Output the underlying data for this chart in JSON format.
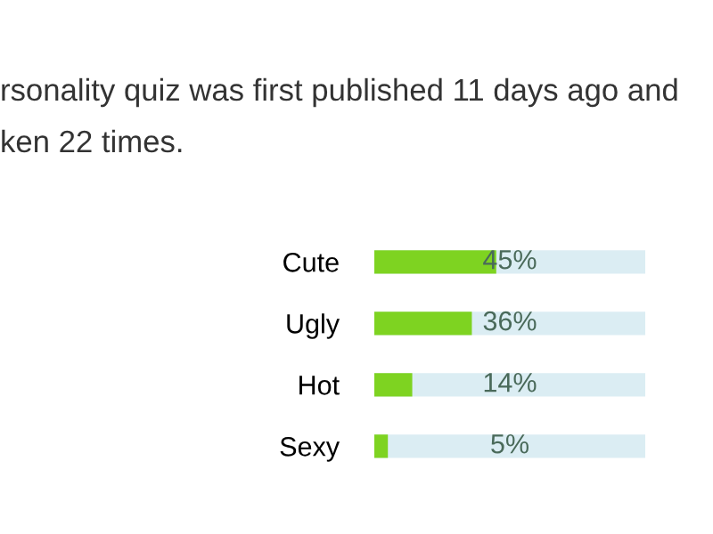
{
  "chart_data": {
    "type": "bar",
    "orientation": "horizontal",
    "annotations": [
      "rsonality quiz was first published 11 days ago and",
      "ken 22 times."
    ],
    "categories": [
      "Cute",
      "Ugly",
      "Hot",
      "Sexy"
    ],
    "values": [
      45,
      36,
      14,
      5
    ],
    "value_labels": [
      "45%",
      "36%",
      "14%",
      "5%"
    ],
    "color": "#7ed321",
    "xlim": [
      0,
      100
    ],
    "tick_labels": "y"
  }
}
